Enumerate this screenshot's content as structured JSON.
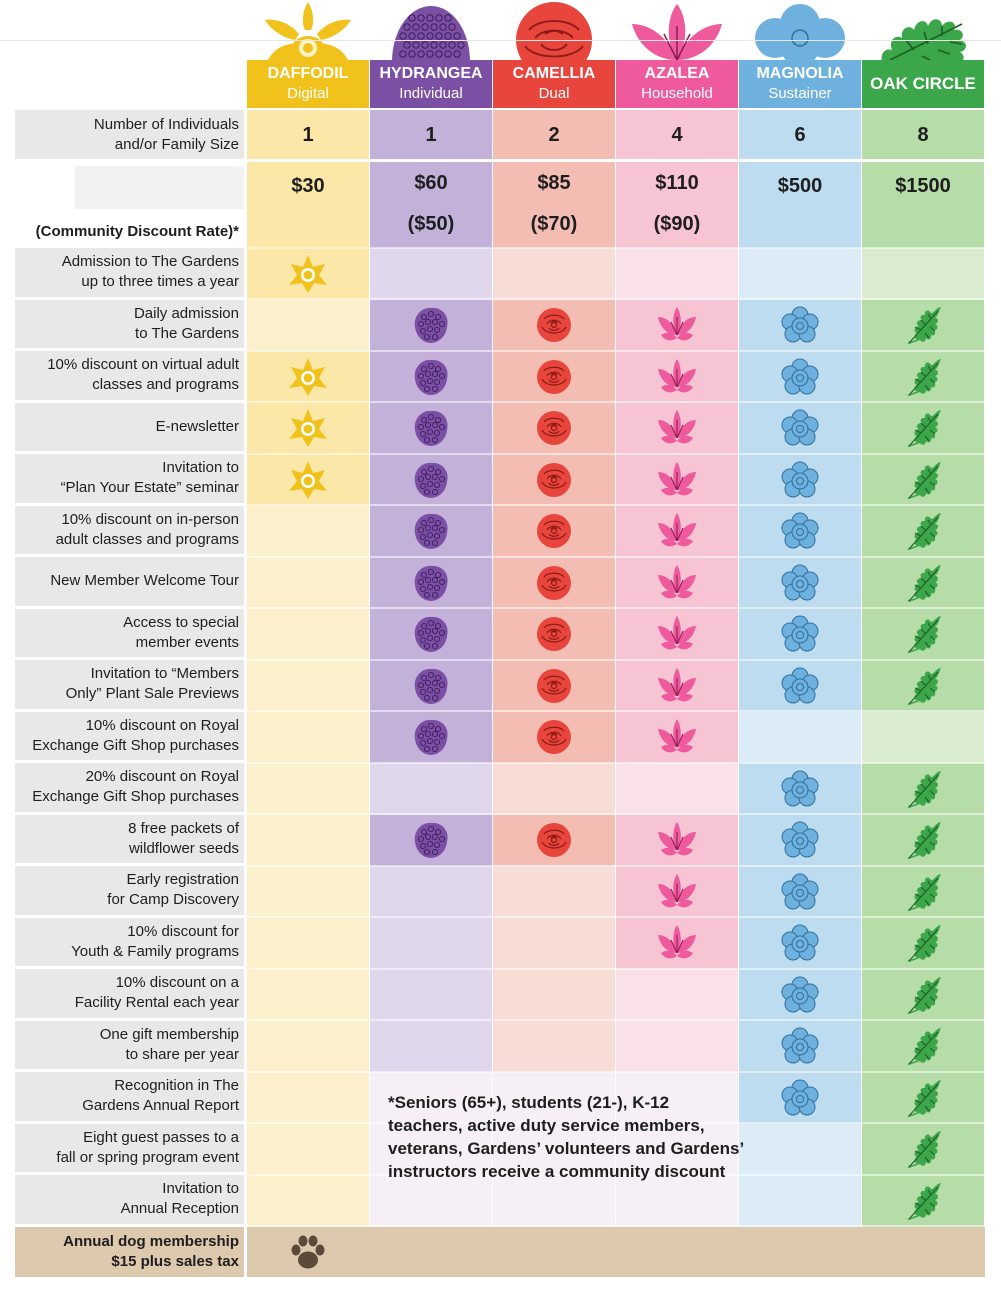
{
  "tiers": [
    {
      "name": "DAFFODIL",
      "type": "Digital",
      "size": "1",
      "price": "$30",
      "discount": "",
      "color": "#f1c21b",
      "light": "#fbe7a7",
      "faint": "#fcf0cc",
      "icon": "daffodil-icon"
    },
    {
      "name": "HYDRANGEA",
      "type": "Individual",
      "size": "1",
      "price": "$60",
      "discount": "($50)",
      "color": "#7b4fa3",
      "light": "#c3b1da",
      "faint": "#e0d7ec",
      "icon": "hydrangea-icon"
    },
    {
      "name": "CAMELLIA",
      "type": "Dual",
      "size": "2",
      "price": "$85",
      "discount": "($70)",
      "color": "#e8453c",
      "light": "#f3bdb4",
      "faint": "#f8dcd6",
      "icon": "camellia-icon"
    },
    {
      "name": "AZALEA",
      "type": "Household",
      "size": "4",
      "price": "$110",
      "discount": "($90)",
      "color": "#ee5a9c",
      "light": "#f7c4d4",
      "faint": "#fae0e8",
      "icon": "azalea-icon"
    },
    {
      "name": "MAGNOLIA",
      "type": "Sustainer",
      "size": "6",
      "price": "$500",
      "discount": "",
      "color": "#6fb1de",
      "light": "#bddcf0",
      "faint": "#dcecf6",
      "icon": "magnolia-icon"
    },
    {
      "name": "OAK CIRCLE",
      "type": "",
      "size": "8",
      "price": "$1500",
      "discount": "",
      "color": "#3ba64a",
      "light": "#b6dca7",
      "faint": "#d9ecd0",
      "icon": "oak-leaf-icon"
    }
  ],
  "labels": {
    "size": [
      "Number of Individuals",
      "and/or Family Size"
    ],
    "discount_rate": "(Community Discount Rate)*"
  },
  "benefits": [
    {
      "label": [
        "Admission to The Gardens",
        "up to three times a year"
      ],
      "has": [
        true,
        false,
        false,
        false,
        false,
        false
      ]
    },
    {
      "label": [
        "Daily admission",
        "to The Gardens"
      ],
      "has": [
        false,
        true,
        true,
        true,
        true,
        true
      ]
    },
    {
      "label": [
        "10% discount on virtual adult",
        "classes and programs"
      ],
      "has": [
        true,
        true,
        true,
        true,
        true,
        true
      ]
    },
    {
      "label": [
        "E-newsletter"
      ],
      "has": [
        true,
        true,
        true,
        true,
        true,
        true
      ]
    },
    {
      "label": [
        "Invitation to",
        "“Plan Your Estate” seminar"
      ],
      "has": [
        true,
        true,
        true,
        true,
        true,
        true
      ]
    },
    {
      "label": [
        "10% discount on in-person",
        "adult classes and programs"
      ],
      "has": [
        false,
        true,
        true,
        true,
        true,
        true
      ]
    },
    {
      "label": [
        "New Member Welcome Tour"
      ],
      "has": [
        false,
        true,
        true,
        true,
        true,
        true
      ]
    },
    {
      "label": [
        "Access to special",
        "member events"
      ],
      "has": [
        false,
        true,
        true,
        true,
        true,
        true
      ]
    },
    {
      "label": [
        "Invitation to “Members",
        "Only” Plant Sale Previews"
      ],
      "has": [
        false,
        true,
        true,
        true,
        true,
        true
      ]
    },
    {
      "label": [
        "10% discount on Royal",
        "Exchange Gift Shop purchases"
      ],
      "has": [
        false,
        true,
        true,
        true,
        false,
        false
      ]
    },
    {
      "label": [
        "20% discount on Royal",
        "Exchange Gift Shop purchases"
      ],
      "has": [
        false,
        false,
        false,
        false,
        true,
        true
      ]
    },
    {
      "label": [
        "8 free packets of",
        "wildflower seeds"
      ],
      "has": [
        false,
        true,
        true,
        true,
        true,
        true
      ]
    },
    {
      "label": [
        "Early registration",
        "for Camp Discovery"
      ],
      "has": [
        false,
        false,
        false,
        true,
        true,
        true
      ]
    },
    {
      "label": [
        "10% discount for",
        "Youth & Family programs"
      ],
      "has": [
        false,
        false,
        false,
        true,
        true,
        true
      ]
    },
    {
      "label": [
        "10% discount on a",
        "Facility Rental each year"
      ],
      "has": [
        false,
        false,
        false,
        false,
        true,
        true
      ]
    },
    {
      "label": [
        "One gift membership",
        "to share per year"
      ],
      "has": [
        false,
        false,
        false,
        false,
        true,
        true
      ]
    },
    {
      "label": [
        "Recognition in The",
        "Gardens Annual Report"
      ],
      "has": [
        false,
        false,
        false,
        false,
        true,
        true
      ]
    },
    {
      "label": [
        "Eight guest passes to a",
        "fall or spring program event"
      ],
      "has": [
        false,
        false,
        false,
        false,
        false,
        true
      ]
    },
    {
      "label": [
        "Invitation to",
        "Annual Reception"
      ],
      "has": [
        false,
        false,
        false,
        false,
        false,
        true
      ]
    }
  ],
  "dog": {
    "label": [
      "Annual dog membership",
      "$15 plus sales tax"
    ],
    "icon": "paw-icon",
    "color": "#5b4a3a"
  },
  "footnote": "*Seniors (65+), students (21-), K-12 teachers, active duty service members, veterans, Gardens’ volunteers and Gardens’ instructors receive a community discount"
}
